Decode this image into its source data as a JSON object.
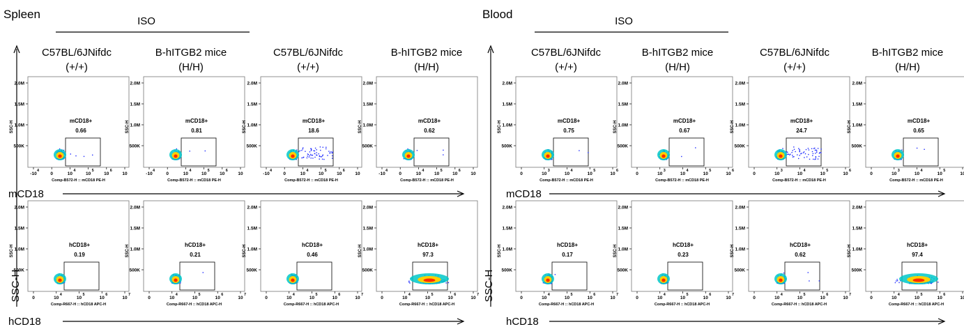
{
  "panels": [
    {
      "tissue": "Spleen",
      "iso_label": "ISO",
      "columns": [
        {
          "line1": "C57BL/6JNifdc",
          "line2": "(+/+)"
        },
        {
          "line1": "B-hITGB2 mice",
          "line2": "(H/H)"
        },
        {
          "line1": "C57BL/6JNifdc",
          "line2": "(+/+)"
        },
        {
          "line1": "B-hITGB2 mice",
          "line2": "(H/H)"
        }
      ],
      "rows": [
        {
          "marker_label": "mCD18",
          "gate_name": "mCD18+",
          "x_axis_title": "Comp-B572-H :: mCD18 PE-H",
          "x_ticks": [
            "-10",
            "0",
            "10",
            "10",
            "10",
            "10"
          ],
          "x_tick_exps": [
            "4",
            "",
            "4",
            "5",
            "6",
            ""
          ],
          "gate_values": [
            "0.66",
            "0.81",
            "18.6",
            "0.62"
          ]
        },
        {
          "marker_label": "hCD18",
          "gate_name": "hCD18+",
          "x_axis_title": "Comp-R667-H :: hCD18 APC-H",
          "x_ticks": [
            "0",
            "10",
            "10",
            "10",
            "10"
          ],
          "x_tick_exps": [
            "",
            "4",
            "5",
            "6",
            "7"
          ],
          "gate_values": [
            "0.19",
            "0.21",
            "0.46",
            "97.3"
          ]
        }
      ],
      "y_axis_label": "SSC-H"
    },
    {
      "tissue": "Blood",
      "iso_label": "ISO",
      "columns": [
        {
          "line1": "C57BL/6JNifdc",
          "line2": "(+/+)"
        },
        {
          "line1": "B-hITGB2 mice",
          "line2": "(H/H)"
        },
        {
          "line1": "C57BL/6JNifdc",
          "line2": "(+/+)"
        },
        {
          "line1": "B-hITGB2 mice",
          "line2": "(H/H)"
        }
      ],
      "rows": [
        {
          "marker_label": "mCD18",
          "gate_name": "mCD18+",
          "x_axis_title": "Comp-B572-H :: mCD18 PE-H",
          "x_ticks": [
            "0",
            "10",
            "10",
            "10",
            "10"
          ],
          "x_tick_exps": [
            "",
            "3",
            "4",
            "5",
            "6"
          ],
          "gate_values": [
            "0.75",
            "0.67",
            "24.7",
            "0.65"
          ]
        },
        {
          "marker_label": "hCD18",
          "gate_name": "hCD18+",
          "x_axis_title": "Comp-R667-H :: hCD18 APC-H",
          "x_ticks": [
            "0",
            "10",
            "10",
            "10",
            "10"
          ],
          "x_tick_exps": [
            "",
            "4",
            "5",
            "6",
            "7"
          ],
          "gate_values": [
            "0.17",
            "0.23",
            "0.62",
            "97.4"
          ]
        }
      ],
      "y_axis_label": "SSC-H"
    }
  ],
  "plot_y_axis_title": "SSC-H",
  "y_ticks": [
    "2.0M",
    "1.5M",
    "1.0M",
    "500K"
  ],
  "colors": {
    "density_low": "#1f2bff",
    "density_mid": "#00c8c8",
    "density_high": "#ffd000",
    "density_peak": "#ff2a00"
  },
  "chart_data": {
    "type": "scatter",
    "title": "",
    "x_label": [
      "mCD18",
      "hCD18"
    ],
    "y_label": "SSC-H",
    "ylim": [
      0,
      2000000
    ],
    "series": [
      {
        "name": "Spleen mCD18+",
        "categories": [
          "C57BL/6JNifdc (+/+)",
          "B-hITGB2 mice (H/H)",
          "C57BL/6JNifdc (+/+)",
          "B-hITGB2 mice (H/H)"
        ],
        "values": [
          0.66,
          0.81,
          18.6,
          0.62
        ]
      },
      {
        "name": "Spleen hCD18+",
        "categories": [
          "C57BL/6JNifdc (+/+)",
          "B-hITGB2 mice (H/H)",
          "C57BL/6JNifdc (+/+)",
          "B-hITGB2 mice (H/H)"
        ],
        "values": [
          0.19,
          0.21,
          0.46,
          97.3
        ]
      },
      {
        "name": "Blood mCD18+",
        "categories": [
          "C57BL/6JNifdc (+/+)",
          "B-hITGB2 mice (H/H)",
          "C57BL/6JNifdc (+/+)",
          "B-hITGB2 mice (H/H)"
        ],
        "values": [
          0.75,
          0.67,
          24.7,
          0.65
        ]
      },
      {
        "name": "Blood hCD18+",
        "categories": [
          "C57BL/6JNifdc (+/+)",
          "B-hITGB2 mice (H/H)",
          "C57BL/6JNifdc (+/+)",
          "B-hITGB2 mice (H/H)"
        ],
        "values": [
          0.17,
          0.23,
          0.62,
          97.4
        ]
      }
    ]
  }
}
